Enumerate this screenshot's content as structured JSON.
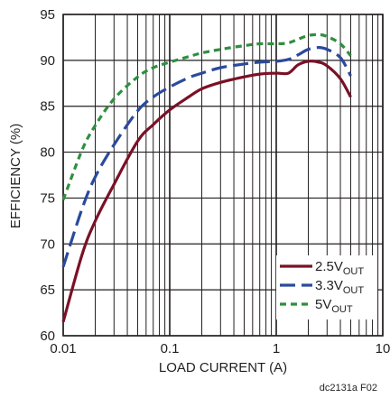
{
  "chart_data": {
    "type": "line",
    "xlabel": "LOAD CURRENT (A)",
    "ylabel": "EFFICIENCY (%)",
    "x_scale": "log",
    "xlim": [
      0.01,
      10
    ],
    "ylim": [
      60,
      95
    ],
    "x_ticks": [
      "0.01",
      "0.1",
      "1",
      "10"
    ],
    "y_ticks": [
      "60",
      "65",
      "70",
      "75",
      "80",
      "85",
      "90",
      "95"
    ],
    "grid": true,
    "legend_position": "bottom-right",
    "footnote": "dc2131a F02",
    "series": [
      {
        "name_main": "2.5V",
        "name_sub": "OUT",
        "color": "#7a1126",
        "dash": "solid",
        "x": [
          0.01,
          0.015,
          0.02,
          0.03,
          0.05,
          0.07,
          0.1,
          0.15,
          0.2,
          0.3,
          0.5,
          0.7,
          1.0,
          1.3,
          1.6,
          2.0,
          2.5,
          3.0,
          4.0,
          5.0
        ],
        "y": [
          61.5,
          68.8,
          72.5,
          76.5,
          81.2,
          83.0,
          84.6,
          86.0,
          86.9,
          87.6,
          88.2,
          88.5,
          88.6,
          88.6,
          89.5,
          89.9,
          89.8,
          89.4,
          88.0,
          86.0
        ]
      },
      {
        "name_main": "3.3V",
        "name_sub": "OUT",
        "color": "#2b4a9c",
        "dash": "long-dash",
        "x": [
          0.01,
          0.015,
          0.02,
          0.03,
          0.05,
          0.07,
          0.1,
          0.15,
          0.2,
          0.3,
          0.5,
          0.7,
          1.0,
          1.3,
          1.6,
          2.0,
          2.5,
          3.0,
          4.0,
          5.0
        ],
        "y": [
          67.5,
          73.8,
          77.3,
          80.8,
          84.5,
          86.0,
          87.1,
          88.1,
          88.6,
          89.2,
          89.6,
          89.8,
          89.9,
          90.1,
          90.6,
          91.2,
          91.4,
          91.2,
          90.3,
          88.3
        ]
      },
      {
        "name_main": "5V",
        "name_sub": "OUT",
        "color": "#2f8f3e",
        "dash": "short-dash",
        "x": [
          0.01,
          0.015,
          0.02,
          0.03,
          0.05,
          0.07,
          0.1,
          0.15,
          0.2,
          0.3,
          0.5,
          0.7,
          1.0,
          1.3,
          1.6,
          2.0,
          2.5,
          3.0,
          4.0,
          5.0
        ],
        "y": [
          74.8,
          80.2,
          82.9,
          85.8,
          88.2,
          89.2,
          89.8,
          90.4,
          90.8,
          91.2,
          91.6,
          91.8,
          91.8,
          91.9,
          92.3,
          92.7,
          92.8,
          92.6,
          91.8,
          90.5
        ]
      }
    ]
  }
}
